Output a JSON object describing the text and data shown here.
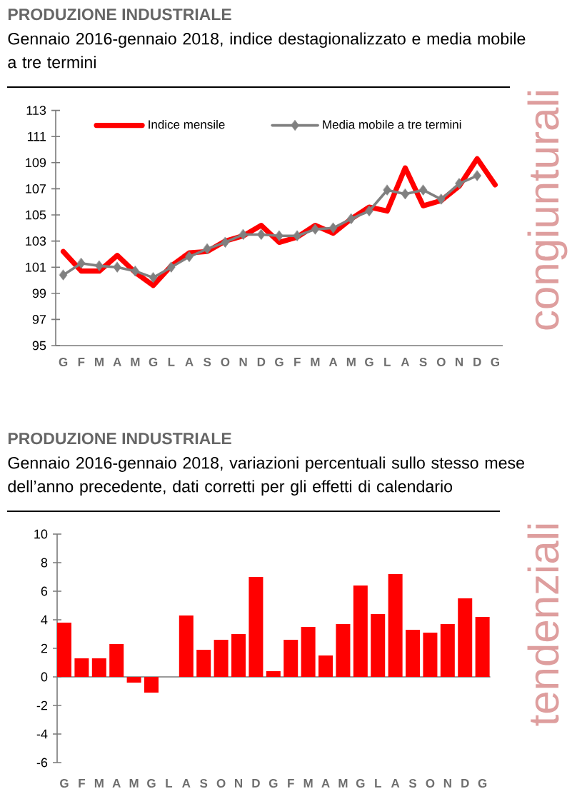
{
  "chart_data": [
    {
      "type": "line",
      "title": "PRODUZIONE INDUSTRIALE",
      "subtitle": "Gennaio 2016-gennaio 2018, indice destagionalizzato e media mobile a tre termini",
      "categories": [
        "G",
        "F",
        "M",
        "A",
        "M",
        "G",
        "L",
        "A",
        "S",
        "O",
        "N",
        "D",
        "G",
        "F",
        "M",
        "A",
        "M",
        "G",
        "L",
        "A",
        "S",
        "O",
        "N",
        "D",
        "G"
      ],
      "series": [
        {
          "name": "Indice mensile",
          "color": "#ff0000",
          "marker": "none",
          "values": [
            102.2,
            100.7,
            100.7,
            101.9,
            100.6,
            99.6,
            101.1,
            102.1,
            102.2,
            103.0,
            103.4,
            104.2,
            102.9,
            103.3,
            104.2,
            103.6,
            104.7,
            105.6,
            105.3,
            108.6,
            105.7,
            106.1,
            107.2,
            109.3,
            107.3
          ]
        },
        {
          "name": "Media mobile a tre termini",
          "color": "#808080",
          "marker": "diamond",
          "values": [
            100.4,
            101.3,
            101.1,
            101.0,
            100.7,
            100.2,
            101.0,
            101.8,
            102.4,
            102.9,
            103.5,
            103.5,
            103.4,
            103.4,
            103.9,
            104.0,
            104.7,
            105.3,
            106.9,
            106.6,
            106.9,
            106.2,
            107.4,
            108.0,
            null
          ]
        }
      ],
      "ylim": [
        95,
        113
      ],
      "yticks": [
        95,
        97,
        99,
        101,
        103,
        105,
        107,
        109,
        111,
        113
      ],
      "legend": "top",
      "annotations": [
        "congiunturali"
      ]
    },
    {
      "type": "bar",
      "title": "PRODUZIONE INDUSTRIALE",
      "subtitle": "Gennaio 2016-gennaio 2018, variazioni percentuali sullo stesso mese dell’anno precedente, dati corretti per gli effetti di calendario",
      "categories": [
        "G",
        "F",
        "M",
        "A",
        "M",
        "G",
        "L",
        "A",
        "S",
        "O",
        "N",
        "D",
        "G",
        "F",
        "M",
        "A",
        "M",
        "G",
        "L",
        "A",
        "S",
        "O",
        "N",
        "D",
        "G"
      ],
      "values": [
        3.8,
        1.3,
        1.3,
        2.3,
        -0.4,
        -1.1,
        0,
        4.3,
        1.9,
        2.6,
        3.0,
        7.0,
        0.4,
        2.6,
        3.5,
        1.5,
        3.7,
        6.4,
        4.4,
        7.2,
        3.3,
        3.1,
        3.7,
        5.5,
        4.2
      ],
      "color": "#ff0000",
      "ylim": [
        -6,
        10
      ],
      "yticks": [
        -6,
        -4,
        -2,
        0,
        2,
        4,
        6,
        8,
        10
      ],
      "annotations": [
        "tendenziali"
      ]
    }
  ]
}
